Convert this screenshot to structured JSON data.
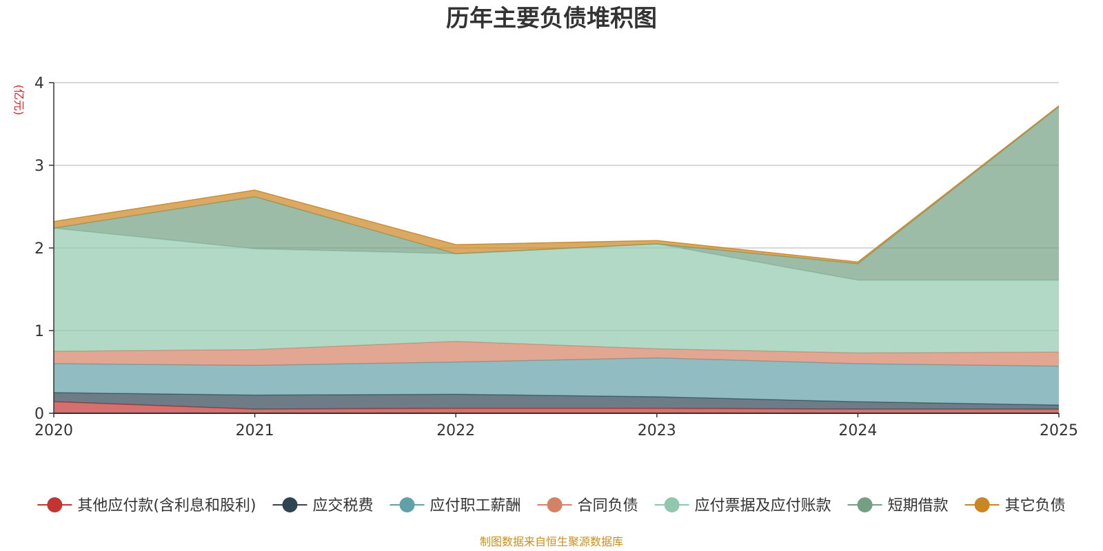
{
  "chart_data": {
    "type": "area",
    "stacked": true,
    "title": "历年主要负债堆积图",
    "unit": "(亿元)",
    "x": [
      "2020",
      "2021",
      "2022",
      "2023",
      "2024",
      "2025"
    ],
    "ylim": [
      0,
      4
    ],
    "yticks": [
      "0",
      "1",
      "2",
      "3",
      "4"
    ],
    "grid": true,
    "legend_position": "bottom",
    "series": [
      {
        "name": "其他应付款(含利息和股利)",
        "color": "#c23531",
        "values": [
          0.14,
          0.05,
          0.06,
          0.06,
          0.05,
          0.05
        ]
      },
      {
        "name": "应交税费",
        "color": "#2f4554",
        "values": [
          0.11,
          0.17,
          0.17,
          0.14,
          0.09,
          0.05
        ]
      },
      {
        "name": "应付职工薪酬",
        "color": "#61a0a8",
        "values": [
          0.35,
          0.36,
          0.39,
          0.47,
          0.46,
          0.47
        ]
      },
      {
        "name": "合同负债",
        "color": "#d48265",
        "values": [
          0.15,
          0.19,
          0.25,
          0.11,
          0.13,
          0.17
        ]
      },
      {
        "name": "应付票据及应付账款",
        "color": "#91c7ae",
        "values": [
          1.49,
          1.22,
          1.06,
          1.27,
          0.88,
          0.87
        ]
      },
      {
        "name": "短期借款",
        "color": "#749f83",
        "values": [
          0.0,
          0.63,
          0.0,
          0.0,
          0.2,
          2.1
        ]
      },
      {
        "name": "其它负债",
        "color": "#ca8622",
        "values": [
          0.08,
          0.08,
          0.11,
          0.04,
          0.02,
          0.01
        ]
      }
    ]
  },
  "footer": {
    "source": "制图数据来自恒生聚源数据库"
  }
}
